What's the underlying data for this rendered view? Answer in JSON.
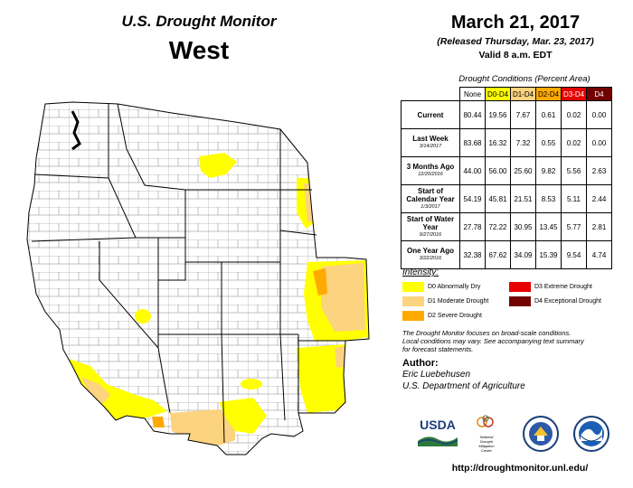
{
  "header": {
    "brand_title": "U.S. Drought Monitor",
    "region": "West",
    "date": "March 21, 2017",
    "released": "(Released Thursday, Mar. 23, 2017)",
    "valid": "Valid  8 a.m. EDT"
  },
  "table": {
    "title": "Drought Conditions (Percent Area)",
    "columns": [
      {
        "label": "None",
        "color": "#ffffff",
        "text_color": "#000000"
      },
      {
        "label": "D0-D4",
        "color": "#ffff00",
        "text_color": "#000000"
      },
      {
        "label": "D1-D4",
        "color": "#fcd37f",
        "text_color": "#000000"
      },
      {
        "label": "D2-D4",
        "color": "#ffaa00",
        "text_color": "#000000"
      },
      {
        "label": "D3-D4",
        "color": "#e60000",
        "text_color": "#ffffff"
      },
      {
        "label": "D4",
        "color": "#730000",
        "text_color": "#ffffff"
      }
    ],
    "rows": [
      {
        "label": "Current",
        "sub": "",
        "values": [
          "80.44",
          "19.56",
          "7.67",
          "0.61",
          "0.02",
          "0.00"
        ]
      },
      {
        "label": "Last Week",
        "sub": "3/14/2017",
        "values": [
          "83.68",
          "16.32",
          "7.32",
          "0.55",
          "0.02",
          "0.00"
        ]
      },
      {
        "label": "3 Months Ago",
        "sub": "12/20/2016",
        "values": [
          "44.00",
          "56.00",
          "25.60",
          "9.82",
          "5.56",
          "2.63"
        ]
      },
      {
        "label": "Start of Calendar Year",
        "sub": "1/3/2017",
        "values": [
          "54.19",
          "45.81",
          "21.51",
          "8.53",
          "5.11",
          "2.44"
        ]
      },
      {
        "label": "Start of Water Year",
        "sub": "9/27/2016",
        "values": [
          "27.78",
          "72.22",
          "30.95",
          "13.45",
          "5.77",
          "2.81"
        ]
      },
      {
        "label": "One Year Ago",
        "sub": "3/22/2016",
        "values": [
          "32.38",
          "67.62",
          "34.09",
          "15.39",
          "9.54",
          "4.74"
        ]
      }
    ]
  },
  "legend": {
    "heading": "Intensity:",
    "items": [
      {
        "label": "D0 Abnormally Dry",
        "color": "#ffff00"
      },
      {
        "label": "D1 Moderate Drought",
        "color": "#fcd37f"
      },
      {
        "label": "D2 Severe Drought",
        "color": "#ffaa00"
      },
      {
        "label": "D3 Extreme Drought",
        "color": "#e60000"
      },
      {
        "label": "D4 Exceptional Drought",
        "color": "#730000"
      }
    ]
  },
  "notes": {
    "line1": "The Drought Monitor focuses on broad-scale conditions.",
    "line2": "Local conditions may vary. See accompanying text summary",
    "line3": "for forecast statements."
  },
  "author": {
    "heading": "Author:",
    "name": "Eric Luebehusen",
    "org": "U.S. Department of Agriculture"
  },
  "logos": {
    "usda": "USDA",
    "ndmc_line1": "National",
    "ndmc_line2": "Drought",
    "ndmc_line3": "Mitigation",
    "ndmc_line4": "Center"
  },
  "url": "http://droughtmonitor.unl.edu/",
  "map": {
    "d0_color": "#ffff00",
    "d1_color": "#fcd37f",
    "d2_color": "#ffaa00",
    "state_line_color": "#000000",
    "county_line_color": "#555555"
  }
}
